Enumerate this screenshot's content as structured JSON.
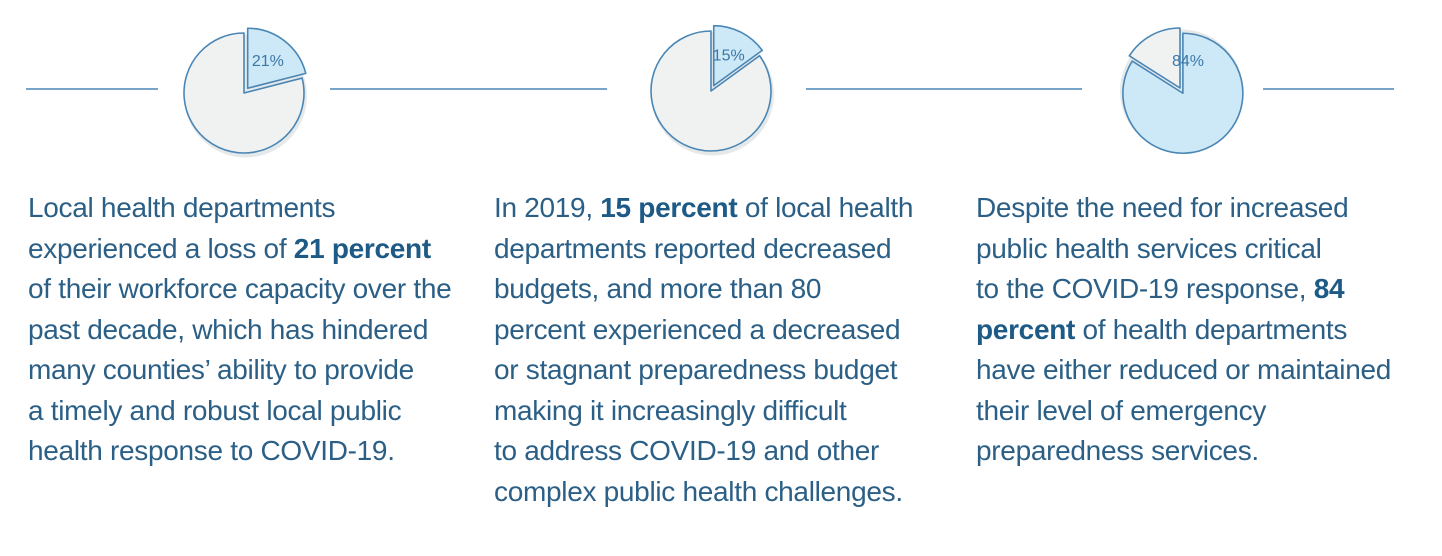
{
  "colors": {
    "line": "#4a86b5",
    "highlight_fill": "#cde8f6",
    "base_fill": "#f0f2f2",
    "shadow": "#e6e9ea",
    "label": "#3b78a8",
    "text": "#2b5f86"
  },
  "chart_data": [
    {
      "type": "pie",
      "slices": [
        {
          "label": "21%",
          "value": 21,
          "highlight": true
        },
        {
          "value": 79,
          "highlight": false
        }
      ]
    },
    {
      "type": "pie",
      "slices": [
        {
          "label": "15%",
          "value": 15,
          "highlight": true
        },
        {
          "value": 85,
          "highlight": false
        }
      ]
    },
    {
      "type": "pie",
      "slices": [
        {
          "label": "84%",
          "value": 84,
          "highlight": true
        },
        {
          "value": 16,
          "highlight": false
        }
      ]
    }
  ],
  "panels": [
    {
      "lines": [
        {
          "parts": [
            {
              "t": "Local health departments"
            }
          ]
        },
        {
          "parts": [
            {
              "t": "experienced a loss of "
            },
            {
              "t": "21 percent",
              "b": true
            }
          ]
        },
        {
          "parts": [
            {
              "t": "of their workforce capacity over the"
            }
          ]
        },
        {
          "parts": [
            {
              "t": "past decade, which has hindered"
            }
          ]
        },
        {
          "parts": [
            {
              "t": "many counties’ ability to provide"
            }
          ]
        },
        {
          "parts": [
            {
              "t": "a timely and robust local public"
            }
          ]
        },
        {
          "parts": [
            {
              "t": "health response to COVID-19."
            }
          ]
        }
      ]
    },
    {
      "lines": [
        {
          "parts": [
            {
              "t": "In 2019, "
            },
            {
              "t": "15 percent",
              "b": true
            },
            {
              "t": " of local health"
            }
          ]
        },
        {
          "parts": [
            {
              "t": "departments reported decreased"
            }
          ]
        },
        {
          "parts": [
            {
              "t": "budgets, and more than 80"
            }
          ]
        },
        {
          "parts": [
            {
              "t": "percent experienced a decreased"
            }
          ]
        },
        {
          "parts": [
            {
              "t": "or stagnant preparedness budget"
            }
          ]
        },
        {
          "parts": [
            {
              "t": "making it increasingly difficult"
            }
          ]
        },
        {
          "parts": [
            {
              "t": "to address COVID-19 and other"
            }
          ]
        },
        {
          "parts": [
            {
              "t": "complex public health challenges."
            }
          ]
        }
      ]
    },
    {
      "lines": [
        {
          "parts": [
            {
              "t": "Despite the need for increased"
            }
          ]
        },
        {
          "parts": [
            {
              "t": "public health services critical"
            }
          ]
        },
        {
          "parts": [
            {
              "t": "to the COVID-19 response, "
            },
            {
              "t": "84",
              "b": true
            }
          ]
        },
        {
          "parts": [
            {
              "t": "percent",
              "b": true
            },
            {
              "t": " of health departments"
            }
          ]
        },
        {
          "parts": [
            {
              "t": "have either reduced or maintained"
            }
          ]
        },
        {
          "parts": [
            {
              "t": "their level of emergency"
            }
          ]
        },
        {
          "parts": [
            {
              "t": "preparedness services."
            }
          ]
        }
      ]
    }
  ]
}
